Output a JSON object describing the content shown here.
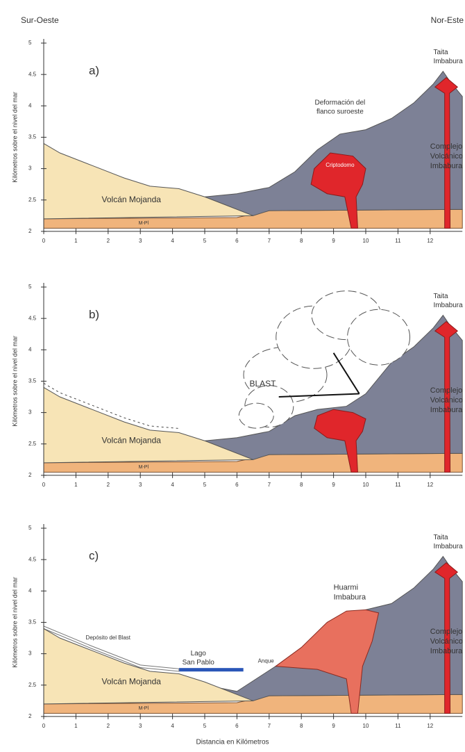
{
  "header": {
    "left": "Sur-Oeste",
    "right": "Nor-Este"
  },
  "y_axis_label": "Kilómetros sobre el nivel del mar",
  "x_axis_label": "Distancia en Kilómetros",
  "yticks": [
    2,
    2.5,
    3,
    3.5,
    4,
    4.5,
    5
  ],
  "xticks": [
    0,
    1,
    2,
    3,
    4,
    5,
    6,
    7,
    8,
    9,
    10,
    11,
    12
  ],
  "panels": [
    {
      "letter": "a)",
      "annotations": [
        {
          "lines": [
            "Taita",
            "Imbabura"
          ]
        },
        {
          "lines": [
            "Deformación del",
            "flanco suroeste"
          ]
        },
        {
          "lines": [
            "Complejo",
            "Volcánico",
            "Imbabura"
          ]
        },
        {
          "lines": [
            "Criptodomo"
          ]
        },
        {
          "lines": [
            "Volcán Mojanda"
          ]
        },
        {
          "lines": [
            "M-Pl"
          ]
        }
      ]
    },
    {
      "letter": "b)",
      "annotations": [
        {
          "lines": [
            "Taita",
            "Imbabura"
          ]
        },
        {
          "lines": [
            "BLAST"
          ]
        },
        {
          "lines": [
            "Complejo",
            "Volcánico",
            "Imbabura"
          ]
        },
        {
          "lines": [
            "Volcán Mojanda"
          ]
        },
        {
          "lines": [
            "M-Pl"
          ]
        }
      ]
    },
    {
      "letter": "c)",
      "annotations": [
        {
          "lines": [
            "Taita",
            "Imbabura"
          ]
        },
        {
          "lines": [
            "Huarmi",
            "Imbabura"
          ]
        },
        {
          "lines": [
            "Complejo",
            "Volcánico",
            "Imbabura"
          ]
        },
        {
          "lines": [
            "Depósito del Blast"
          ]
        },
        {
          "lines": [
            "Lago",
            "San Pablo"
          ]
        },
        {
          "lines": [
            "Anque"
          ]
        },
        {
          "lines": [
            "Volcán Mojanda"
          ]
        },
        {
          "lines": [
            "M-Pl"
          ]
        }
      ]
    }
  ]
}
